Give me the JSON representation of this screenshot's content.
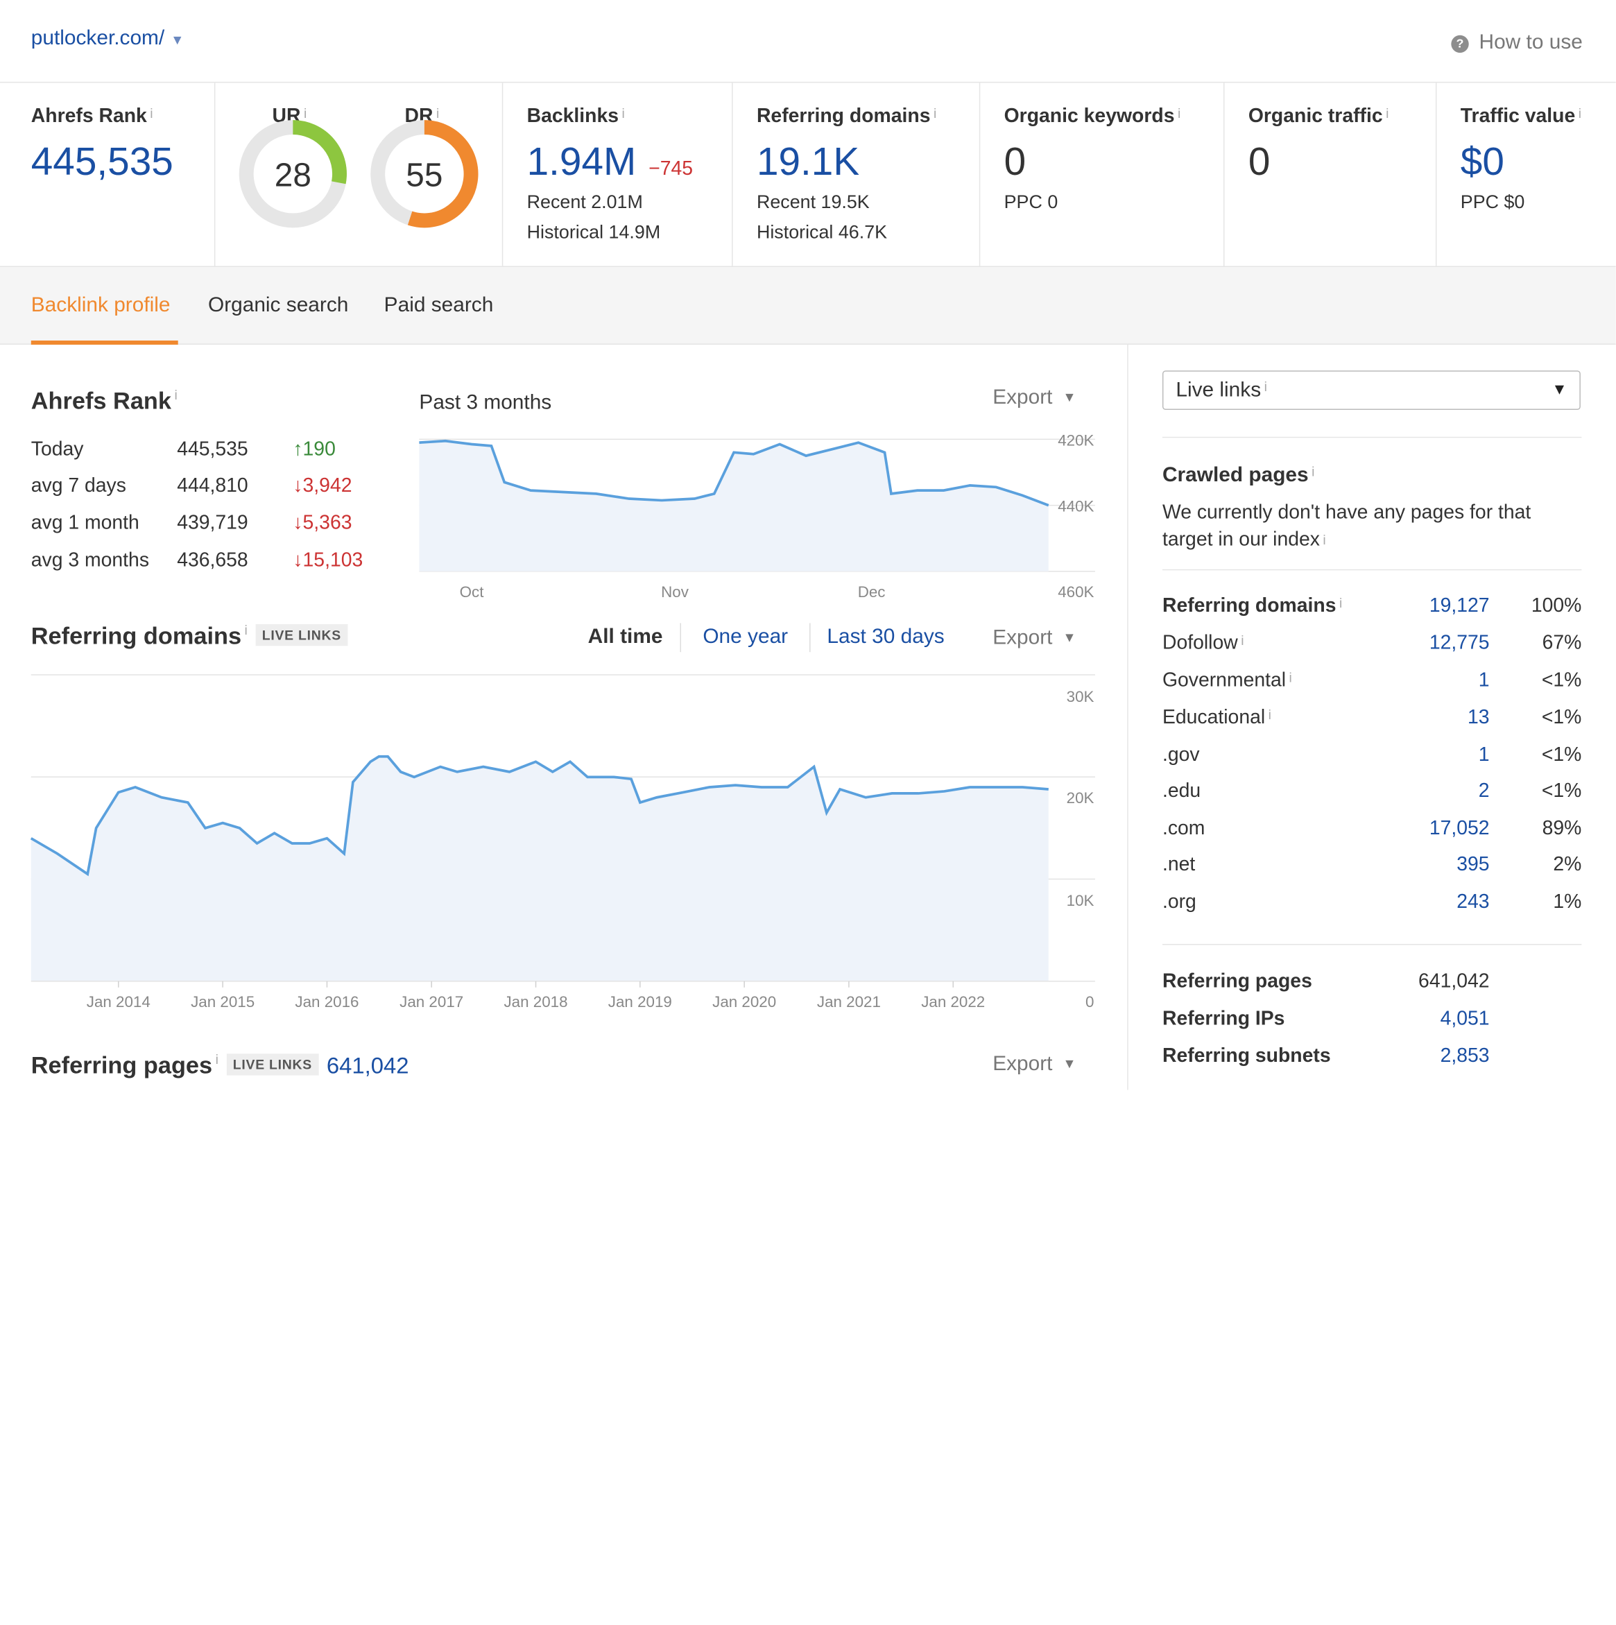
{
  "header": {
    "domain": "putlocker.com/",
    "how_to_use": "How to use"
  },
  "metrics": {
    "ahrefs_rank": {
      "label": "Ahrefs Rank",
      "value": "445,535"
    },
    "ur": {
      "label": "UR",
      "value": "28",
      "score": 28,
      "color": "#8dc63f"
    },
    "dr": {
      "label": "DR",
      "value": "55",
      "score": 55,
      "color": "#f0892f"
    },
    "backlinks": {
      "label": "Backlinks",
      "value": "1.94M",
      "delta": "−745",
      "recent": "Recent 2.01M",
      "historical": "Historical 14.9M"
    },
    "referring_domains": {
      "label": "Referring domains",
      "value": "19.1K",
      "recent": "Recent 19.5K",
      "historical": "Historical 46.7K"
    },
    "organic_keywords": {
      "label": "Organic keywords",
      "value": "0",
      "sub": "PPC 0"
    },
    "organic_traffic": {
      "label": "Organic traffic",
      "value": "0"
    },
    "traffic_value": {
      "label": "Traffic value",
      "value": "$0",
      "sub": "PPC $0"
    },
    "info": "i"
  },
  "tabs": [
    {
      "label": "Backlink profile",
      "active": true
    },
    {
      "label": "Organic search",
      "active": false
    },
    {
      "label": "Paid search",
      "active": false
    }
  ],
  "ahrefs_rank_section": {
    "title": "Ahrefs Rank",
    "period_label": "Past 3 months",
    "export_label": "Export",
    "rows": [
      {
        "label": "Today",
        "value": "445,535",
        "arrow": "↑",
        "change": "190",
        "dir": "up"
      },
      {
        "label": "avg 7 days",
        "value": "444,810",
        "arrow": "↓",
        "change": "3,942",
        "dir": "down"
      },
      {
        "label": "avg 1 month",
        "value": "439,719",
        "arrow": "↓",
        "change": "5,363",
        "dir": "down"
      },
      {
        "label": "avg 3 months",
        "value": "436,658",
        "arrow": "↓",
        "change": "15,103",
        "dir": "down"
      }
    ]
  },
  "referring_domains_section": {
    "title": "Referring domains",
    "badge": "LIVE LINKS",
    "ranges": [
      "All time",
      "One year",
      "Last 30 days"
    ],
    "selected_range": "All time",
    "export_label": "Export"
  },
  "referring_pages_section": {
    "title": "Referring pages",
    "badge": "LIVE LINKS",
    "value": "641,042",
    "export_label": "Export"
  },
  "chart_data": [
    {
      "type": "area",
      "title": "Ahrefs Rank",
      "subtitle": "Past 3 months",
      "x_labels": [
        "Oct",
        "Nov",
        "Dec"
      ],
      "y_ticks": [
        "420K",
        "440K",
        "460K"
      ],
      "ylim": [
        460000,
        418000
      ],
      "y_inverted": true,
      "color": "#5aa0dd",
      "fill": "#eef3fa",
      "x": [
        "2022-09-23",
        "2022-09-27",
        "2022-10-01",
        "2022-10-04",
        "2022-10-06",
        "2022-10-10",
        "2022-10-15",
        "2022-10-20",
        "2022-10-25",
        "2022-10-30",
        "2022-11-04",
        "2022-11-07",
        "2022-11-10",
        "2022-11-13",
        "2022-11-17",
        "2022-11-21",
        "2022-11-25",
        "2022-11-29",
        "2022-12-03",
        "2022-12-04",
        "2022-12-08",
        "2022-12-12",
        "2022-12-16",
        "2022-12-20",
        "2022-12-24",
        "2022-12-28"
      ],
      "values": [
        421000,
        420500,
        421500,
        422000,
        433000,
        435500,
        436000,
        436500,
        438000,
        438500,
        438000,
        436500,
        424000,
        424500,
        421500,
        425000,
        423000,
        421000,
        424000,
        436500,
        435500,
        435500,
        434000,
        434500,
        437000,
        440000
      ]
    },
    {
      "type": "area",
      "title": "Referring domains",
      "x_labels": [
        "Jan 2014",
        "Jan 2015",
        "Jan 2016",
        "Jan 2017",
        "Jan 2018",
        "Jan 2019",
        "Jan 2020",
        "Jan 2021",
        "Jan 2022"
      ],
      "y_ticks": [
        "0",
        "10K",
        "20K",
        "30K"
      ],
      "ylim": [
        0,
        30000
      ],
      "color": "#5aa0dd",
      "fill": "#eef3fa",
      "x": [
        "2013-03-01",
        "2013-06-01",
        "2013-09-15",
        "2013-10-15",
        "2014-01-01",
        "2014-03-01",
        "2014-06-01",
        "2014-09-01",
        "2014-11-01",
        "2015-01-01",
        "2015-03-01",
        "2015-05-01",
        "2015-07-01",
        "2015-09-01",
        "2015-11-01",
        "2016-01-01",
        "2016-03-01",
        "2016-04-01",
        "2016-06-01",
        "2016-07-01",
        "2016-08-01",
        "2016-09-15",
        "2016-11-01",
        "2017-02-01",
        "2017-04-01",
        "2017-07-01",
        "2017-10-01",
        "2018-01-01",
        "2018-03-01",
        "2018-05-01",
        "2018-07-01",
        "2018-10-01",
        "2018-12-01",
        "2019-01-01",
        "2019-03-01",
        "2019-06-01",
        "2019-09-01",
        "2019-12-01",
        "2020-03-01",
        "2020-06-01",
        "2020-09-01",
        "2020-10-15",
        "2020-12-01",
        "2021-03-01",
        "2021-06-01",
        "2021-09-01",
        "2021-12-01",
        "2022-03-01",
        "2022-06-01",
        "2022-09-01",
        "2022-12-01"
      ],
      "values": [
        14000,
        12500,
        10500,
        15000,
        18500,
        19000,
        18000,
        17500,
        15000,
        15500,
        15000,
        13500,
        14500,
        13500,
        13500,
        14000,
        12500,
        19500,
        21500,
        22000,
        22000,
        20500,
        20000,
        21000,
        20500,
        21000,
        20500,
        21500,
        20500,
        21500,
        20000,
        20000,
        19800,
        17500,
        18000,
        18500,
        19000,
        19200,
        19000,
        19000,
        21000,
        16500,
        18800,
        18000,
        18400,
        18400,
        18600,
        19000,
        19000,
        19000,
        18800
      ]
    }
  ],
  "right_panel": {
    "select_label": "Live links",
    "crawled_title": "Crawled pages",
    "crawled_text": "We currently don't have any pages for that target in our index",
    "domain_stats": [
      {
        "label": "Referring domains",
        "value": "19,127",
        "pct": "100%",
        "bold": true
      },
      {
        "label": "Dofollow",
        "value": "12,775",
        "pct": "67%",
        "info": true
      },
      {
        "label": "Governmental",
        "value": "1",
        "pct": "<1%",
        "info": true
      },
      {
        "label": "Educational",
        "value": "13",
        "pct": "<1%",
        "info": true
      },
      {
        "label": ".gov",
        "value": "1",
        "pct": "<1%"
      },
      {
        "label": ".edu",
        "value": "2",
        "pct": "<1%"
      },
      {
        "label": ".com",
        "value": "17,052",
        "pct": "89%"
      },
      {
        "label": ".net",
        "value": "395",
        "pct": "2%"
      },
      {
        "label": ".org",
        "value": "243",
        "pct": "1%"
      }
    ],
    "page_stats": [
      {
        "label": "Referring pages",
        "value": "641,042"
      },
      {
        "label": "Referring IPs",
        "value": "4,051"
      },
      {
        "label": "Referring subnets",
        "value": "2,853"
      }
    ]
  }
}
